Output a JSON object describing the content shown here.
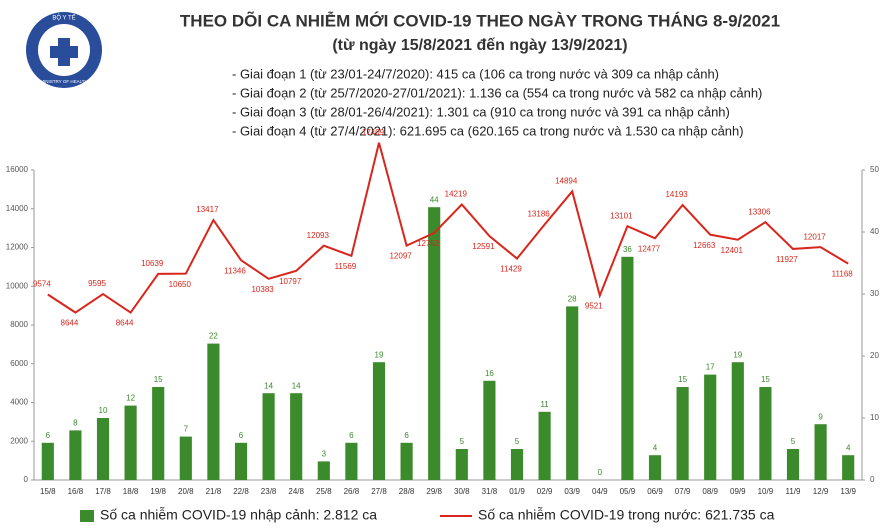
{
  "logo": {
    "top": "BỘ Y TẾ",
    "bottom": "MINISTRY OF HEALTH"
  },
  "chart_data": {
    "type": "bar_line",
    "title": "THEO DÕI CA NHIỄM MỚI COVID-19 THEO NGÀY TRONG THÁNG 8-9/2021",
    "subtitle": "(từ ngày 15/8/2021 đến ngày 13/9/2021)",
    "notes": [
      "- Giai đoạn 1 (từ 23/01-24/7/2020): 415 ca (106 ca trong nước và 309 ca nhập cảnh)",
      "- Giai đoạn 2 (từ 25/7/2020-27/01/2021): 1.136 ca (554 ca trong nước và 582 ca nhập cảnh)",
      "- Giai đoạn 3 (từ 28/01-26/4/2021): 1.301 ca (910 ca trong nước và 391 ca nhập cảnh)",
      "- Giai đoạn 4 (từ 27/4/2021): 621.695 ca (620.165 ca trong nước và 1.530 ca nhập cảnh)"
    ],
    "categories": [
      "15/8",
      "16/8",
      "17/8",
      "18/8",
      "19/8",
      "20/8",
      "21/8",
      "22/8",
      "23/8",
      "24/8",
      "25/8",
      "26/8",
      "27/8",
      "28/8",
      "29/8",
      "30/8",
      "31/8",
      "01/9",
      "02/9",
      "03/9",
      "04/9",
      "05/9",
      "06/9",
      "07/9",
      "08/9",
      "09/9",
      "10/9",
      "11/9",
      "12/9",
      "13/9"
    ],
    "series": [
      {
        "name": "Số ca nhiễm COVID-19 nhập cảnh: 2.812 ca",
        "type": "bar",
        "axis": "y2",
        "color": "#3b8a2c",
        "values": [
          6,
          8,
          10,
          12,
          15,
          7,
          22,
          6,
          14,
          14,
          3,
          6,
          19,
          6,
          44,
          5,
          16,
          5,
          11,
          28,
          0,
          36,
          4,
          15,
          17,
          19,
          15,
          5,
          9,
          4
        ]
      },
      {
        "name": "Số ca nhiễm COVID-19 trong nước: 621.735 ca",
        "type": "line",
        "axis": "y",
        "color": "#d9261c",
        "values": [
          9574,
          8644,
          9595,
          8644,
          10639,
          10650,
          13417,
          11346,
          10383,
          10797,
          12093,
          11569,
          17409,
          12097,
          12752,
          14219,
          12591,
          11429,
          13186,
          14894,
          9521,
          13101,
          12477,
          14193,
          12663,
          12401,
          13306,
          11927,
          12017,
          11168
        ]
      }
    ],
    "ylim": [
      0,
      16000
    ],
    "yticks": [
      0,
      2000,
      4000,
      6000,
      8000,
      10000,
      12000,
      14000,
      16000
    ],
    "y2lim": [
      0,
      50
    ],
    "y2ticks": [
      0,
      10,
      20,
      30,
      40,
      50
    ]
  }
}
